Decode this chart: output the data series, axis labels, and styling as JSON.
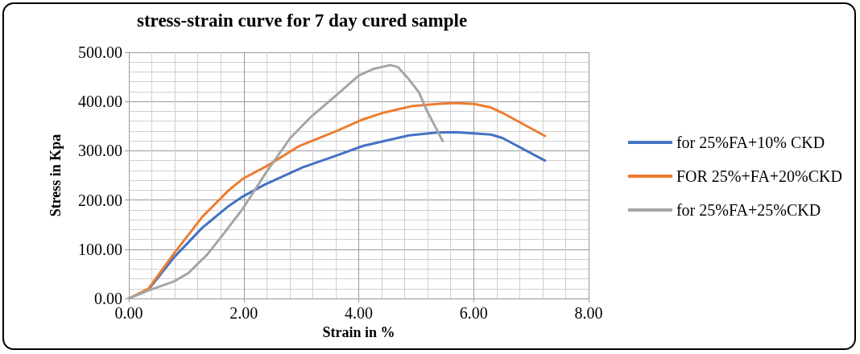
{
  "chart_data": {
    "type": "line",
    "title": "stress-strain curve for 7 day cured sample",
    "xlabel": "Strain in %",
    "ylabel": "Stress in Kpa",
    "xlim": [
      0,
      8
    ],
    "xticks": [
      {
        "value": 0,
        "label": "0.00"
      },
      {
        "value": 2,
        "label": "2.00"
      },
      {
        "value": 4,
        "label": "4.00"
      },
      {
        "value": 6,
        "label": "6.00"
      },
      {
        "value": 8,
        "label": "8.00"
      }
    ],
    "ylim": [
      0,
      500
    ],
    "yticks": [
      {
        "value": 0,
        "label": "0.00"
      },
      {
        "value": 100,
        "label": "100.00"
      },
      {
        "value": 200,
        "label": "200.00"
      },
      {
        "value": 300,
        "label": "300.00"
      },
      {
        "value": 400,
        "label": "400.00"
      },
      {
        "value": 500,
        "label": "500.00"
      }
    ],
    "grid": true,
    "legend": "right",
    "marker": "none",
    "line_style": "solid",
    "series": [
      {
        "name": "for 25%FA+10% CKD",
        "color": "#4472c4",
        "x": [
          0,
          0.34,
          0.79,
          1.28,
          1.74,
          1.98,
          2.36,
          3.02,
          3.63,
          4.08,
          4.86,
          5.36,
          5.68,
          6.3,
          6.5,
          7.24
        ],
        "values": [
          0,
          18,
          84,
          144,
          188,
          207,
          231,
          266,
          291,
          310,
          331,
          337,
          338,
          333,
          326,
          280
        ]
      },
      {
        "name": "FOR 25%+FA+20%CKD",
        "color": "#ed7d31",
        "x": [
          0,
          0.34,
          0.79,
          1.28,
          1.74,
          1.98,
          2.4,
          2.97,
          3.63,
          4.08,
          4.45,
          4.94,
          5.36,
          5.68,
          6.01,
          6.3,
          6.5,
          7.24
        ],
        "values": [
          0,
          20,
          92,
          166,
          220,
          243,
          269,
          310,
          341,
          364,
          378,
          391,
          395,
          397,
          395,
          388,
          377,
          330
        ]
      },
      {
        "name": "for 25%FA+25%CKD",
        "color": "#a5a5a5",
        "x": [
          0,
          0.34,
          0.79,
          1.04,
          1.37,
          1.66,
          1.98,
          2.4,
          2.81,
          3.18,
          3.63,
          4.0,
          4.25,
          4.55,
          4.68,
          4.86,
          5.05,
          5.17,
          5.46
        ],
        "values": [
          0,
          16,
          35,
          52,
          90,
          133,
          182,
          258,
          326,
          370,
          415,
          453,
          466,
          474,
          470,
          447,
          418,
          385,
          320
        ]
      }
    ]
  }
}
